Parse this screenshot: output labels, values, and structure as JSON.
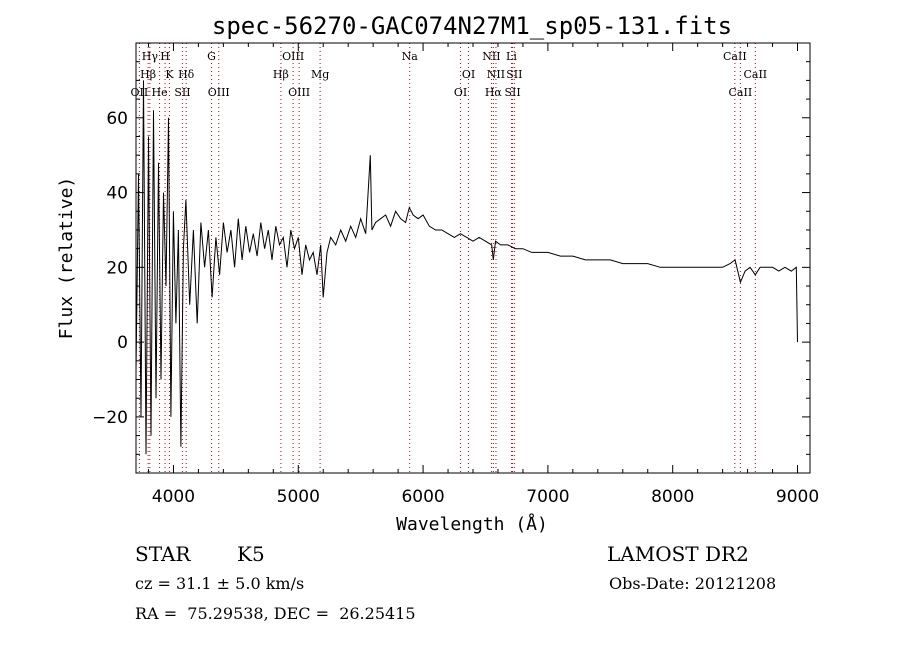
{
  "chart_data": {
    "type": "line",
    "title": "spec-56270-GAC074N27M1_sp05-131.fits",
    "xlabel": "Wavelength (Å)",
    "ylabel": "Flux (relative)",
    "xlim": [
      3700,
      9100
    ],
    "ylim": [
      -35,
      80
    ],
    "xticks": [
      4000,
      5000,
      6000,
      7000,
      8000,
      9000
    ],
    "yticks": [
      -20,
      0,
      20,
      40,
      60
    ],
    "grid": false,
    "series": [
      {
        "values_note": "spectrum",
        "x": [
          3700,
          3720,
          3740,
          3760,
          3780,
          3800,
          3820,
          3840,
          3860,
          3880,
          3900,
          3920,
          3940,
          3960,
          3980,
          4000,
          4020,
          4040,
          4060,
          4080,
          4100,
          4130,
          4160,
          4190,
          4220,
          4250,
          4280,
          4310,
          4340,
          4370,
          4400,
          4430,
          4460,
          4490,
          4520,
          4550,
          4580,
          4610,
          4640,
          4670,
          4700,
          4730,
          4760,
          4790,
          4820,
          4850,
          4880,
          4910,
          4940,
          4970,
          5000,
          5030,
          5060,
          5090,
          5120,
          5150,
          5180,
          5200,
          5230,
          5260,
          5300,
          5340,
          5380,
          5420,
          5460,
          5500,
          5540,
          5577,
          5590,
          5620,
          5660,
          5700,
          5740,
          5780,
          5820,
          5860,
          5890,
          5920,
          5960,
          6000,
          6050,
          6100,
          6150,
          6200,
          6250,
          6300,
          6350,
          6400,
          6450,
          6500,
          6550,
          6563,
          6580,
          6620,
          6680,
          6740,
          6800,
          6870,
          6940,
          7000,
          7100,
          7200,
          7300,
          7400,
          7500,
          7600,
          7700,
          7800,
          7900,
          8000,
          8100,
          8200,
          8300,
          8400,
          8460,
          8500,
          8542,
          8580,
          8620,
          8662,
          8700,
          8750,
          8800,
          8850,
          8900,
          8950,
          8990,
          9000
        ],
        "y": [
          -8,
          45,
          -20,
          70,
          -30,
          55,
          -25,
          62,
          -15,
          48,
          -10,
          40,
          15,
          60,
          -20,
          35,
          5,
          30,
          -28,
          25,
          38,
          10,
          30,
          5,
          32,
          20,
          30,
          12,
          28,
          18,
          32,
          24,
          30,
          20,
          33,
          22,
          31,
          24,
          29,
          23,
          32,
          25,
          30,
          22,
          31,
          26,
          28,
          20,
          30,
          25,
          28,
          18,
          26,
          22,
          24,
          18,
          26,
          12,
          24,
          28,
          26,
          30,
          27,
          31,
          28,
          33,
          29,
          50,
          30,
          32,
          33,
          34,
          31,
          35,
          33,
          32,
          36,
          34,
          33,
          34,
          31,
          30,
          30,
          29,
          28,
          29,
          28,
          27,
          28,
          27,
          26,
          22,
          27,
          26,
          26,
          25,
          25,
          24,
          24,
          24,
          23,
          23,
          22,
          22,
          22,
          21,
          21,
          21,
          20,
          20,
          20,
          20,
          20,
          20,
          21,
          22,
          16,
          19,
          20,
          18,
          20,
          20,
          20,
          19,
          20,
          19,
          20,
          0
        ]
      }
    ],
    "line_markers": [
      {
        "label": "Hγ",
        "x": 3811,
        "row": 0
      },
      {
        "label": "H",
        "x": 3933,
        "row": 0
      },
      {
        "label": "G",
        "x": 4305,
        "row": 0
      },
      {
        "label": "OIII",
        "x": 4959,
        "row": 0
      },
      {
        "label": "Na",
        "x": 5893,
        "row": 0
      },
      {
        "label": "NII",
        "x": 6548,
        "row": 0
      },
      {
        "label": "Li",
        "x": 6708,
        "row": 0
      },
      {
        "label": "CaII",
        "x": 8498,
        "row": 0
      },
      {
        "label": "Hβ",
        "x": 3797,
        "row": 1
      },
      {
        "label": "K",
        "x": 3968,
        "row": 1
      },
      {
        "label": "Hδ",
        "x": 4102,
        "row": 1
      },
      {
        "label": "Hβ",
        "x": 4861,
        "row": 1
      },
      {
        "label": "Mg",
        "x": 5175,
        "row": 1
      },
      {
        "label": "OI",
        "x": 6364,
        "row": 1
      },
      {
        "label": "NII",
        "x": 6584,
        "row": 1
      },
      {
        "label": "SII",
        "x": 6731,
        "row": 1
      },
      {
        "label": "CaII",
        "x": 8662,
        "row": 1
      },
      {
        "label": "OII",
        "x": 3727,
        "row": 2
      },
      {
        "label": "He",
        "x": 3889,
        "row": 2
      },
      {
        "label": "SII",
        "x": 4072,
        "row": 2
      },
      {
        "label": "OIII",
        "x": 4363,
        "row": 2
      },
      {
        "label": "OIII",
        "x": 5007,
        "row": 2
      },
      {
        "label": "OI",
        "x": 6300,
        "row": 2
      },
      {
        "label": "Hα",
        "x": 6563,
        "row": 2
      },
      {
        "label": "SII",
        "x": 6717,
        "row": 2
      },
      {
        "label": "CaII",
        "x": 8542,
        "row": 2
      }
    ],
    "marker_color": "#cc0000"
  },
  "info": {
    "object_type": "STAR",
    "subclass": "K5",
    "survey": "LAMOST DR2",
    "cz_line": "cz = 31.1 ± 5.0 km/s",
    "obs_date_line": "Obs-Date: 20121208",
    "coord_line": "RA =  75.29538, DEC =  26.25415"
  }
}
